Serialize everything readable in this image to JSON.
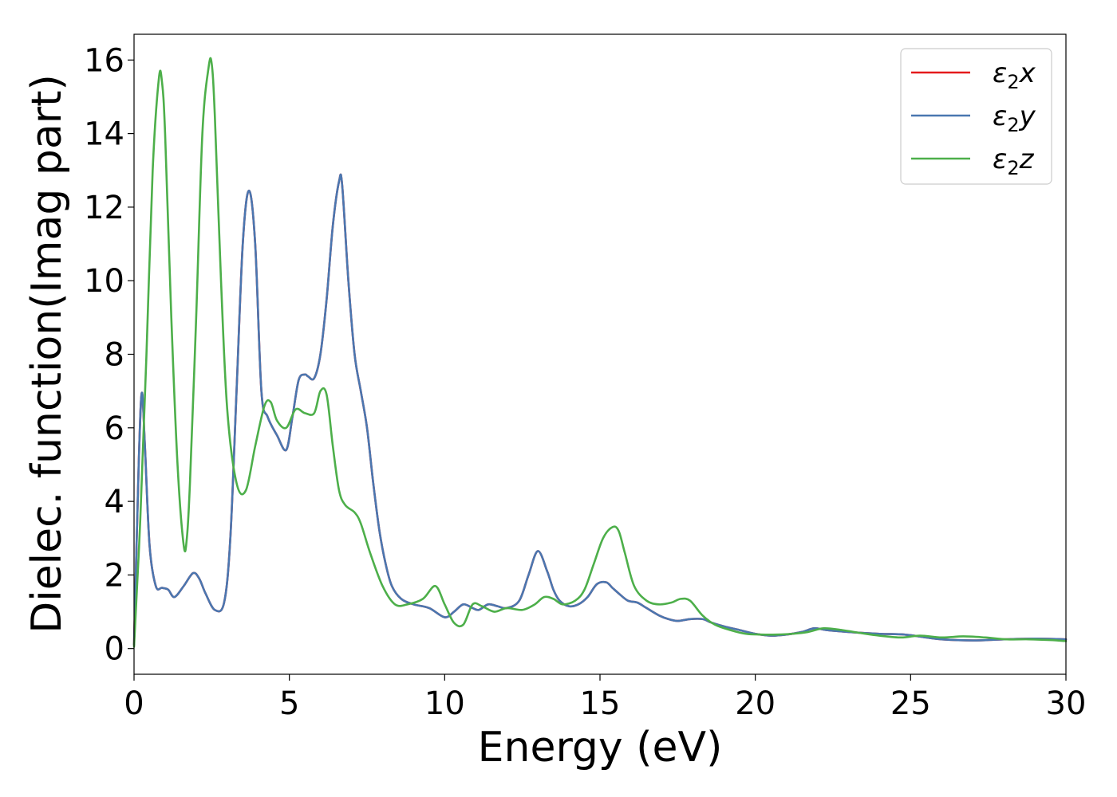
{
  "chart_data": {
    "type": "line",
    "title": "",
    "xlabel": "Energy (eV)",
    "ylabel": "Dielec. function(Imag part)",
    "xlim": [
      0,
      30
    ],
    "ylim": [
      -0.7,
      16.7
    ],
    "xticks": [
      0,
      5,
      10,
      15,
      20,
      25,
      30
    ],
    "yticks": [
      0,
      2,
      4,
      6,
      8,
      10,
      12,
      14,
      16
    ],
    "grid": false,
    "legend_position": "top-right",
    "series": [
      {
        "name": "ε₂x",
        "legend_sub": "2",
        "legend_var": "x",
        "color": "#e41a1c",
        "x": [
          0,
          0.15,
          0.25,
          0.35,
          0.5,
          0.7,
          0.9,
          1.1,
          1.3,
          1.6,
          1.9,
          2.1,
          2.3,
          2.6,
          2.9,
          3.1,
          3.3,
          3.5,
          3.7,
          3.9,
          4.1,
          4.3,
          4.6,
          4.9,
          5.1,
          5.3,
          5.5,
          5.6,
          5.8,
          6.0,
          6.2,
          6.4,
          6.6,
          6.7,
          6.9,
          7.1,
          7.3,
          7.5,
          7.7,
          7.9,
          8.1,
          8.3,
          8.6,
          9.0,
          9.5,
          10.0,
          10.3,
          10.6,
          10.9,
          11.1,
          11.4,
          11.7,
          12.0,
          12.4,
          12.7,
          13.0,
          13.3,
          13.5,
          13.7,
          14.0,
          14.3,
          14.6,
          14.9,
          15.2,
          15.4,
          15.6,
          15.9,
          16.2,
          16.5,
          16.9,
          17.2,
          17.5,
          17.9,
          18.3,
          18.6,
          19.0,
          19.5,
          20.0,
          20.5,
          21.0,
          21.5,
          21.9,
          22.3,
          23.0,
          24.0,
          24.8,
          25.5,
          26.0,
          27.0,
          28.0,
          29.0,
          30.0
        ],
        "values": [
          0.1,
          5.0,
          6.95,
          5.5,
          2.8,
          1.7,
          1.65,
          1.6,
          1.4,
          1.7,
          2.05,
          1.9,
          1.5,
          1.05,
          1.25,
          3.0,
          7.0,
          11.0,
          12.45,
          11.0,
          7.0,
          6.3,
          5.8,
          5.4,
          6.3,
          7.3,
          7.45,
          7.4,
          7.35,
          8.0,
          9.5,
          11.5,
          12.7,
          12.6,
          10.0,
          8.0,
          7.0,
          6.0,
          4.5,
          3.2,
          2.3,
          1.7,
          1.35,
          1.2,
          1.1,
          0.85,
          1.0,
          1.2,
          1.1,
          1.05,
          1.2,
          1.15,
          1.1,
          1.3,
          2.0,
          2.65,
          2.1,
          1.6,
          1.3,
          1.15,
          1.2,
          1.4,
          1.75,
          1.8,
          1.65,
          1.5,
          1.3,
          1.25,
          1.1,
          0.9,
          0.8,
          0.75,
          0.8,
          0.8,
          0.7,
          0.6,
          0.5,
          0.4,
          0.35,
          0.38,
          0.45,
          0.55,
          0.5,
          0.45,
          0.4,
          0.38,
          0.3,
          0.25,
          0.22,
          0.25,
          0.27,
          0.25
        ]
      },
      {
        "name": "ε₂y",
        "legend_sub": "2",
        "legend_var": "y",
        "color": "#4a77b0",
        "x": [
          0,
          0.15,
          0.25,
          0.35,
          0.5,
          0.7,
          0.9,
          1.1,
          1.3,
          1.6,
          1.9,
          2.1,
          2.3,
          2.6,
          2.9,
          3.1,
          3.3,
          3.5,
          3.7,
          3.9,
          4.1,
          4.3,
          4.6,
          4.9,
          5.1,
          5.3,
          5.5,
          5.6,
          5.8,
          6.0,
          6.2,
          6.4,
          6.6,
          6.7,
          6.9,
          7.1,
          7.3,
          7.5,
          7.7,
          7.9,
          8.1,
          8.3,
          8.6,
          9.0,
          9.5,
          10.0,
          10.3,
          10.6,
          10.9,
          11.1,
          11.4,
          11.7,
          12.0,
          12.4,
          12.7,
          13.0,
          13.3,
          13.5,
          13.7,
          14.0,
          14.3,
          14.6,
          14.9,
          15.2,
          15.4,
          15.6,
          15.9,
          16.2,
          16.5,
          16.9,
          17.2,
          17.5,
          17.9,
          18.3,
          18.6,
          19.0,
          19.5,
          20.0,
          20.5,
          21.0,
          21.5,
          21.9,
          22.3,
          23.0,
          24.0,
          24.8,
          25.5,
          26.0,
          27.0,
          28.0,
          29.0,
          30.0
        ],
        "values": [
          0.1,
          5.0,
          6.95,
          5.5,
          2.8,
          1.7,
          1.65,
          1.6,
          1.4,
          1.7,
          2.05,
          1.9,
          1.5,
          1.05,
          1.25,
          3.0,
          7.0,
          11.0,
          12.45,
          11.0,
          7.0,
          6.3,
          5.8,
          5.4,
          6.3,
          7.3,
          7.45,
          7.4,
          7.35,
          8.0,
          9.5,
          11.5,
          12.7,
          12.6,
          10.0,
          8.0,
          7.0,
          6.0,
          4.5,
          3.2,
          2.3,
          1.7,
          1.35,
          1.2,
          1.1,
          0.85,
          1.0,
          1.2,
          1.1,
          1.05,
          1.2,
          1.15,
          1.1,
          1.3,
          2.0,
          2.65,
          2.1,
          1.6,
          1.3,
          1.15,
          1.2,
          1.4,
          1.75,
          1.8,
          1.65,
          1.5,
          1.3,
          1.25,
          1.1,
          0.9,
          0.8,
          0.75,
          0.8,
          0.8,
          0.7,
          0.6,
          0.5,
          0.4,
          0.35,
          0.38,
          0.45,
          0.55,
          0.5,
          0.45,
          0.4,
          0.38,
          0.3,
          0.25,
          0.22,
          0.25,
          0.27,
          0.25
        ]
      },
      {
        "name": "ε₂z",
        "legend_sub": "2",
        "legend_var": "z",
        "color": "#4daf4a",
        "x": [
          0,
          0.2,
          0.4,
          0.6,
          0.8,
          0.9,
          1.0,
          1.2,
          1.4,
          1.6,
          1.7,
          1.8,
          2.0,
          2.2,
          2.4,
          2.5,
          2.6,
          2.8,
          3.0,
          3.3,
          3.6,
          3.9,
          4.2,
          4.4,
          4.6,
          4.9,
          5.2,
          5.5,
          5.8,
          6.0,
          6.2,
          6.4,
          6.6,
          6.8,
          7.1,
          7.3,
          7.6,
          8.0,
          8.4,
          8.8,
          9.3,
          9.7,
          10.0,
          10.3,
          10.6,
          10.9,
          11.2,
          11.6,
          12.0,
          12.5,
          12.9,
          13.2,
          13.5,
          13.8,
          14.2,
          14.5,
          14.8,
          15.1,
          15.4,
          15.6,
          15.8,
          16.1,
          16.5,
          16.9,
          17.3,
          17.6,
          17.9,
          18.3,
          18.7,
          19.2,
          19.7,
          20.2,
          20.7,
          21.2,
          21.7,
          22.2,
          22.8,
          23.4,
          24.0,
          24.7,
          25.3,
          26.0,
          26.7,
          27.4,
          28.1,
          28.8,
          29.5,
          30.0
        ],
        "values": [
          0.05,
          3.5,
          8.0,
          13.0,
          15.5,
          15.4,
          14.0,
          9.0,
          5.0,
          2.8,
          3.0,
          4.5,
          9.0,
          14.0,
          15.8,
          15.9,
          14.5,
          10.0,
          6.5,
          4.5,
          4.3,
          5.5,
          6.6,
          6.7,
          6.2,
          6.0,
          6.5,
          6.4,
          6.4,
          7.0,
          6.9,
          5.5,
          4.3,
          3.9,
          3.7,
          3.4,
          2.6,
          1.7,
          1.2,
          1.2,
          1.35,
          1.7,
          1.2,
          0.7,
          0.65,
          1.2,
          1.15,
          1.0,
          1.1,
          1.05,
          1.2,
          1.4,
          1.35,
          1.2,
          1.3,
          1.6,
          2.3,
          3.0,
          3.3,
          3.2,
          2.6,
          1.7,
          1.3,
          1.2,
          1.25,
          1.35,
          1.3,
          0.9,
          0.65,
          0.5,
          0.4,
          0.38,
          0.38,
          0.4,
          0.45,
          0.55,
          0.5,
          0.42,
          0.35,
          0.3,
          0.35,
          0.3,
          0.33,
          0.3,
          0.25,
          0.25,
          0.23,
          0.2
        ]
      }
    ]
  }
}
